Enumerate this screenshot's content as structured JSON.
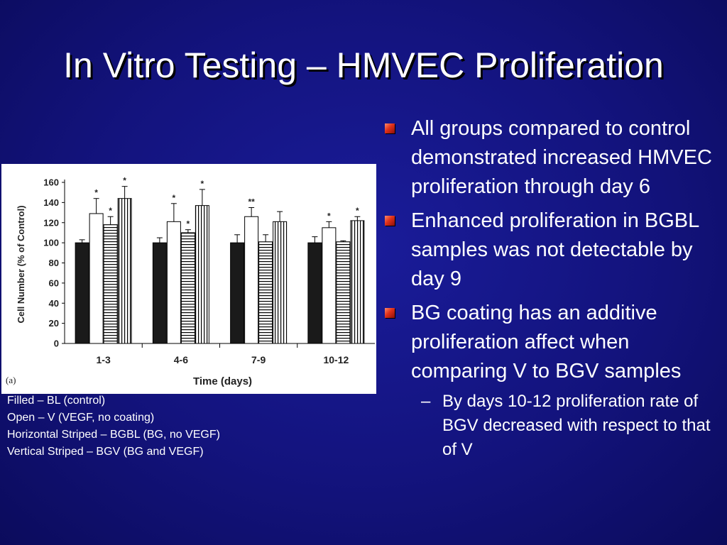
{
  "slide": {
    "title": "In Vitro Testing – HMVEC Proliferation"
  },
  "legend": [
    "Filled – BL (control)",
    "Open – V (VEGF, no coating)",
    "Horizontal Striped – BGBL (BG, no VEGF)",
    "Vertical Striped – BGV (BG and VEGF)"
  ],
  "bullets": [
    "All groups compared to control demonstrated increased HMVEC proliferation through day 6",
    "Enhanced proliferation in BGBL samples was not detectable by day 9",
    "BG coating has an additive proliferation affect when comparing V to BGV samples"
  ],
  "subbullet": {
    "dash": "–",
    "text": "By days 10-12 proliferation rate of BGV decreased with respect to that of V"
  },
  "colors": {
    "background": "#13137d",
    "text": "#ffffff",
    "bullet_marker": "#e0301a"
  },
  "chart_data": {
    "type": "bar",
    "panel_label": "(a)",
    "xlabel": "Time (days)",
    "ylabel": "Cell Number (% of Control)",
    "ylim": [
      0,
      160
    ],
    "yticks": [
      0,
      20,
      40,
      60,
      80,
      100,
      120,
      140,
      160
    ],
    "categories": [
      "1-3",
      "4-6",
      "7-9",
      "10-12"
    ],
    "series": [
      {
        "fill": "filled",
        "values": [
          100,
          100,
          100,
          100
        ],
        "errors": [
          3,
          5,
          8,
          6
        ],
        "marks": [
          "",
          "",
          "",
          ""
        ]
      },
      {
        "fill": "open",
        "values": [
          129,
          121,
          126,
          115
        ],
        "errors": [
          15,
          18,
          9,
          6
        ],
        "marks": [
          "*",
          "*",
          "**",
          "*"
        ]
      },
      {
        "fill": "horizontal-striped",
        "values": [
          118,
          110,
          101,
          101
        ],
        "errors": [
          8,
          3,
          7,
          1
        ],
        "marks": [
          "*",
          "*",
          "",
          ""
        ]
      },
      {
        "fill": "vertical-striped",
        "values": [
          144,
          137,
          121,
          122
        ],
        "errors": [
          12,
          16,
          10,
          4
        ],
        "marks": [
          "*",
          "*",
          "",
          "*"
        ]
      }
    ]
  }
}
